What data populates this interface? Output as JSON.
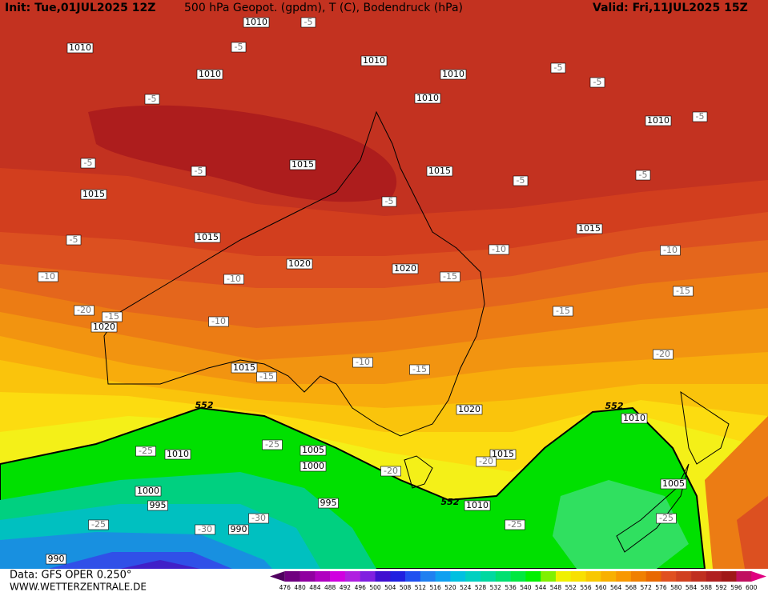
{
  "header": {
    "init": "Init: Tue,01JUL2025 12Z",
    "title": "500 hPa Geopot. (gpdm), T (C), Bodendruck (hPa)",
    "valid": "Valid: Fri,11JUL2025 15Z"
  },
  "map": {
    "isobar_labels": [
      "1010",
      "1010",
      "1010",
      "1010",
      "1010",
      "1010",
      "1010",
      "1015",
      "1015",
      "1015",
      "1015",
      "1015",
      "1020",
      "1020",
      "1020",
      "1015",
      "1020",
      "1010",
      "1005",
      "1000",
      "1010",
      "1015",
      "1000",
      "995",
      "995",
      "990",
      "1005",
      "1010",
      "990"
    ],
    "geopotential_labels": [
      "552",
      "552",
      "552"
    ],
    "temperature_labels": [
      "-5",
      "-5",
      "-5",
      "-5",
      "-5",
      "-5",
      "-5",
      "-5",
      "-5",
      "-5",
      "-5",
      "-5",
      "-10",
      "-10",
      "-10",
      "-10",
      "-15",
      "-15",
      "-15",
      "-20",
      "-15",
      "-10",
      "-20",
      "-10",
      "-15",
      "-15",
      "-25",
      "-25",
      "-20",
      "-20",
      "-30",
      "-30",
      "-25",
      "-25",
      "-25"
    ]
  },
  "footer": {
    "source": "Data: GFS OPER 0.250°",
    "website": "WWW.WETTERZENTRALE.DE"
  },
  "legend": {
    "ticks": [
      476,
      480,
      484,
      488,
      492,
      496,
      500,
      504,
      508,
      512,
      516,
      520,
      524,
      528,
      532,
      536,
      540,
      544,
      548,
      552,
      556,
      560,
      564,
      568,
      572,
      576,
      580,
      584,
      588,
      592,
      596,
      600
    ],
    "colors": [
      "#500060",
      "#700080",
      "#9000a0",
      "#b000c0",
      "#d000e0",
      "#b020e0",
      "#8020e0",
      "#4010d0",
      "#2020e0",
      "#2050f0",
      "#2080f0",
      "#10a0f0",
      "#00c0e0",
      "#00d0c0",
      "#00d8a0",
      "#00e070",
      "#00e840",
      "#00f000",
      "#80f000",
      "#f0f000",
      "#f8e000",
      "#f8c800",
      "#f8b000",
      "#f89800",
      "#f08000",
      "#e86800",
      "#e05020",
      "#d04020",
      "#c03020",
      "#b02020",
      "#a01818",
      "#c01060",
      "#e00080"
    ]
  }
}
